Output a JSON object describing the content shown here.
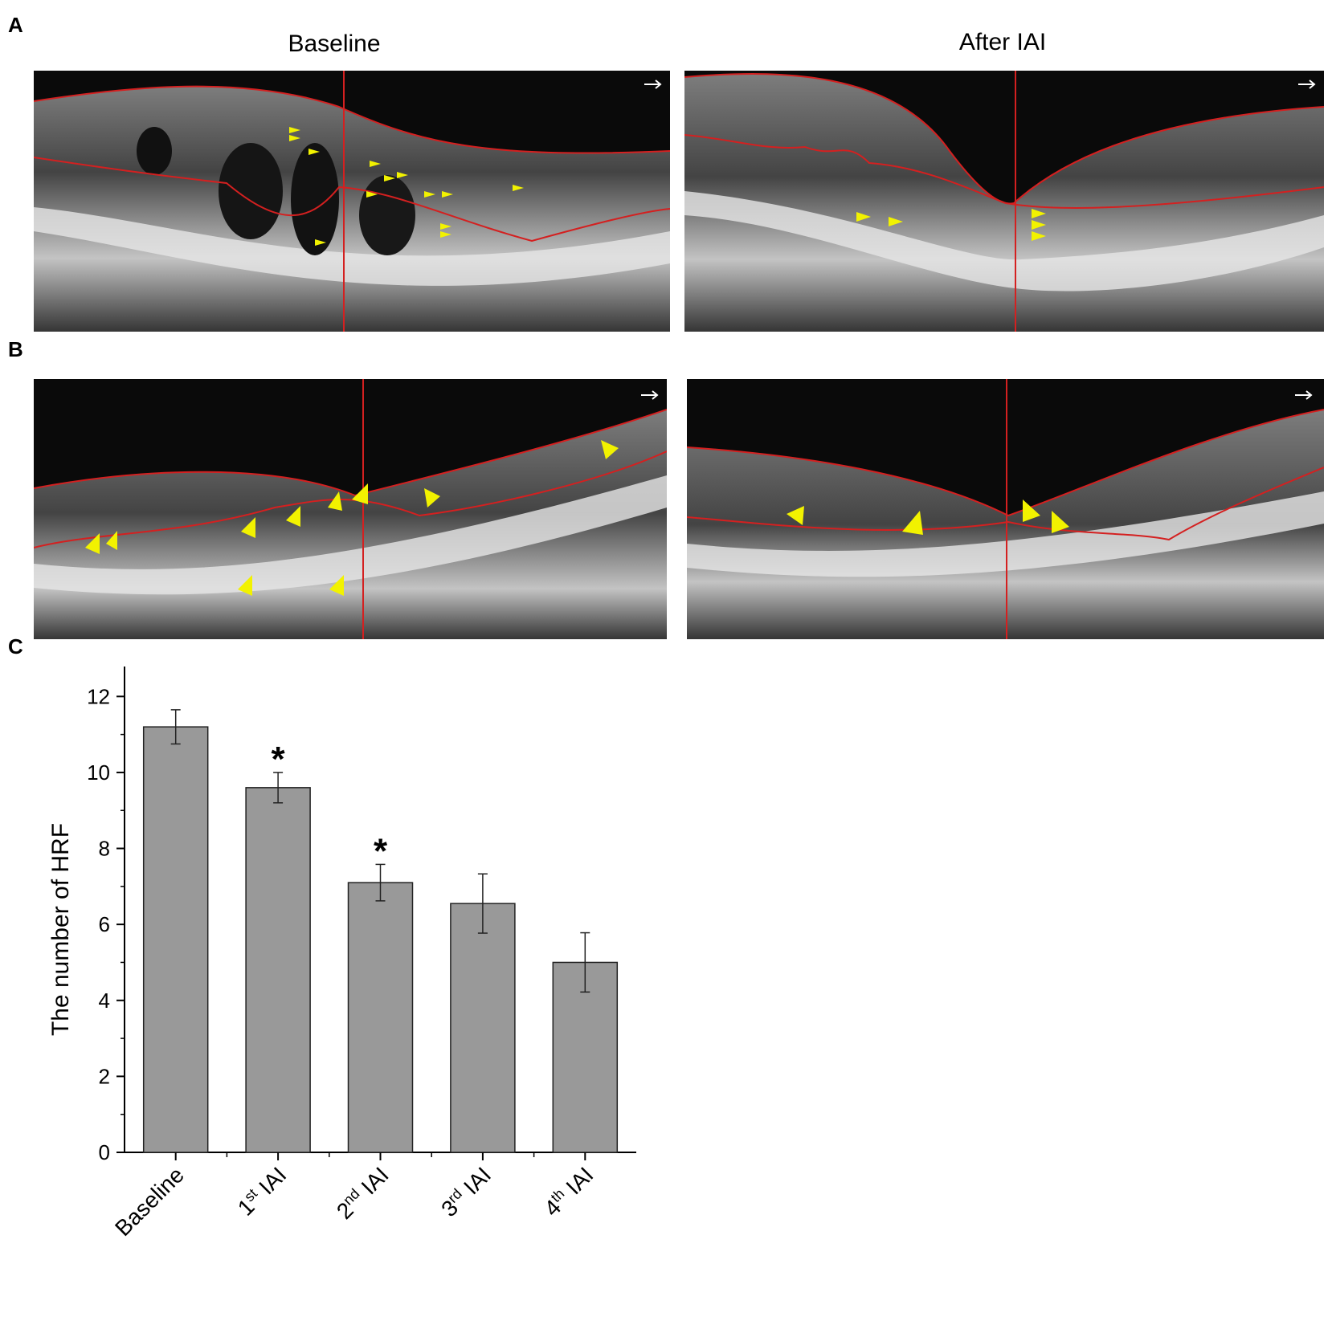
{
  "panels": {
    "a": {
      "letter": "A",
      "titles": [
        "Baseline",
        "After IAI"
      ]
    },
    "b": {
      "letter": "B"
    },
    "c": {
      "letter": "C"
    }
  },
  "colors": {
    "bar_fill": "#999999",
    "bar_stroke": "#222222",
    "segmentation_line": "#d42020",
    "arrowhead": "#f2f200",
    "scan_background": "#0a0a0a"
  },
  "chart_data": {
    "type": "bar",
    "categories": [
      "Baseline",
      "1st IAI",
      "2nd IAI",
      "3rd IAI",
      "4th IAI"
    ],
    "category_labels": [
      {
        "main": "Baseline",
        "sup": "",
        "tail": ""
      },
      {
        "main": "1",
        "sup": "st",
        "tail": " IAI"
      },
      {
        "main": "2",
        "sup": "nd",
        "tail": " IAI"
      },
      {
        "main": "3",
        "sup": "rd",
        "tail": " IAI"
      },
      {
        "main": "4",
        "sup": "th",
        "tail": " IAI"
      }
    ],
    "values": [
      11.2,
      9.6,
      7.1,
      6.55,
      5.0
    ],
    "error": [
      0.45,
      0.4,
      0.48,
      0.78,
      0.78
    ],
    "significance": [
      "",
      "*",
      "*",
      "",
      ""
    ],
    "xlabel": "",
    "ylabel": "The number of HRF",
    "ylim": [
      0,
      13
    ],
    "yticks": [
      0,
      2,
      4,
      6,
      8,
      10,
      12
    ],
    "grid": false,
    "legend": "none"
  }
}
